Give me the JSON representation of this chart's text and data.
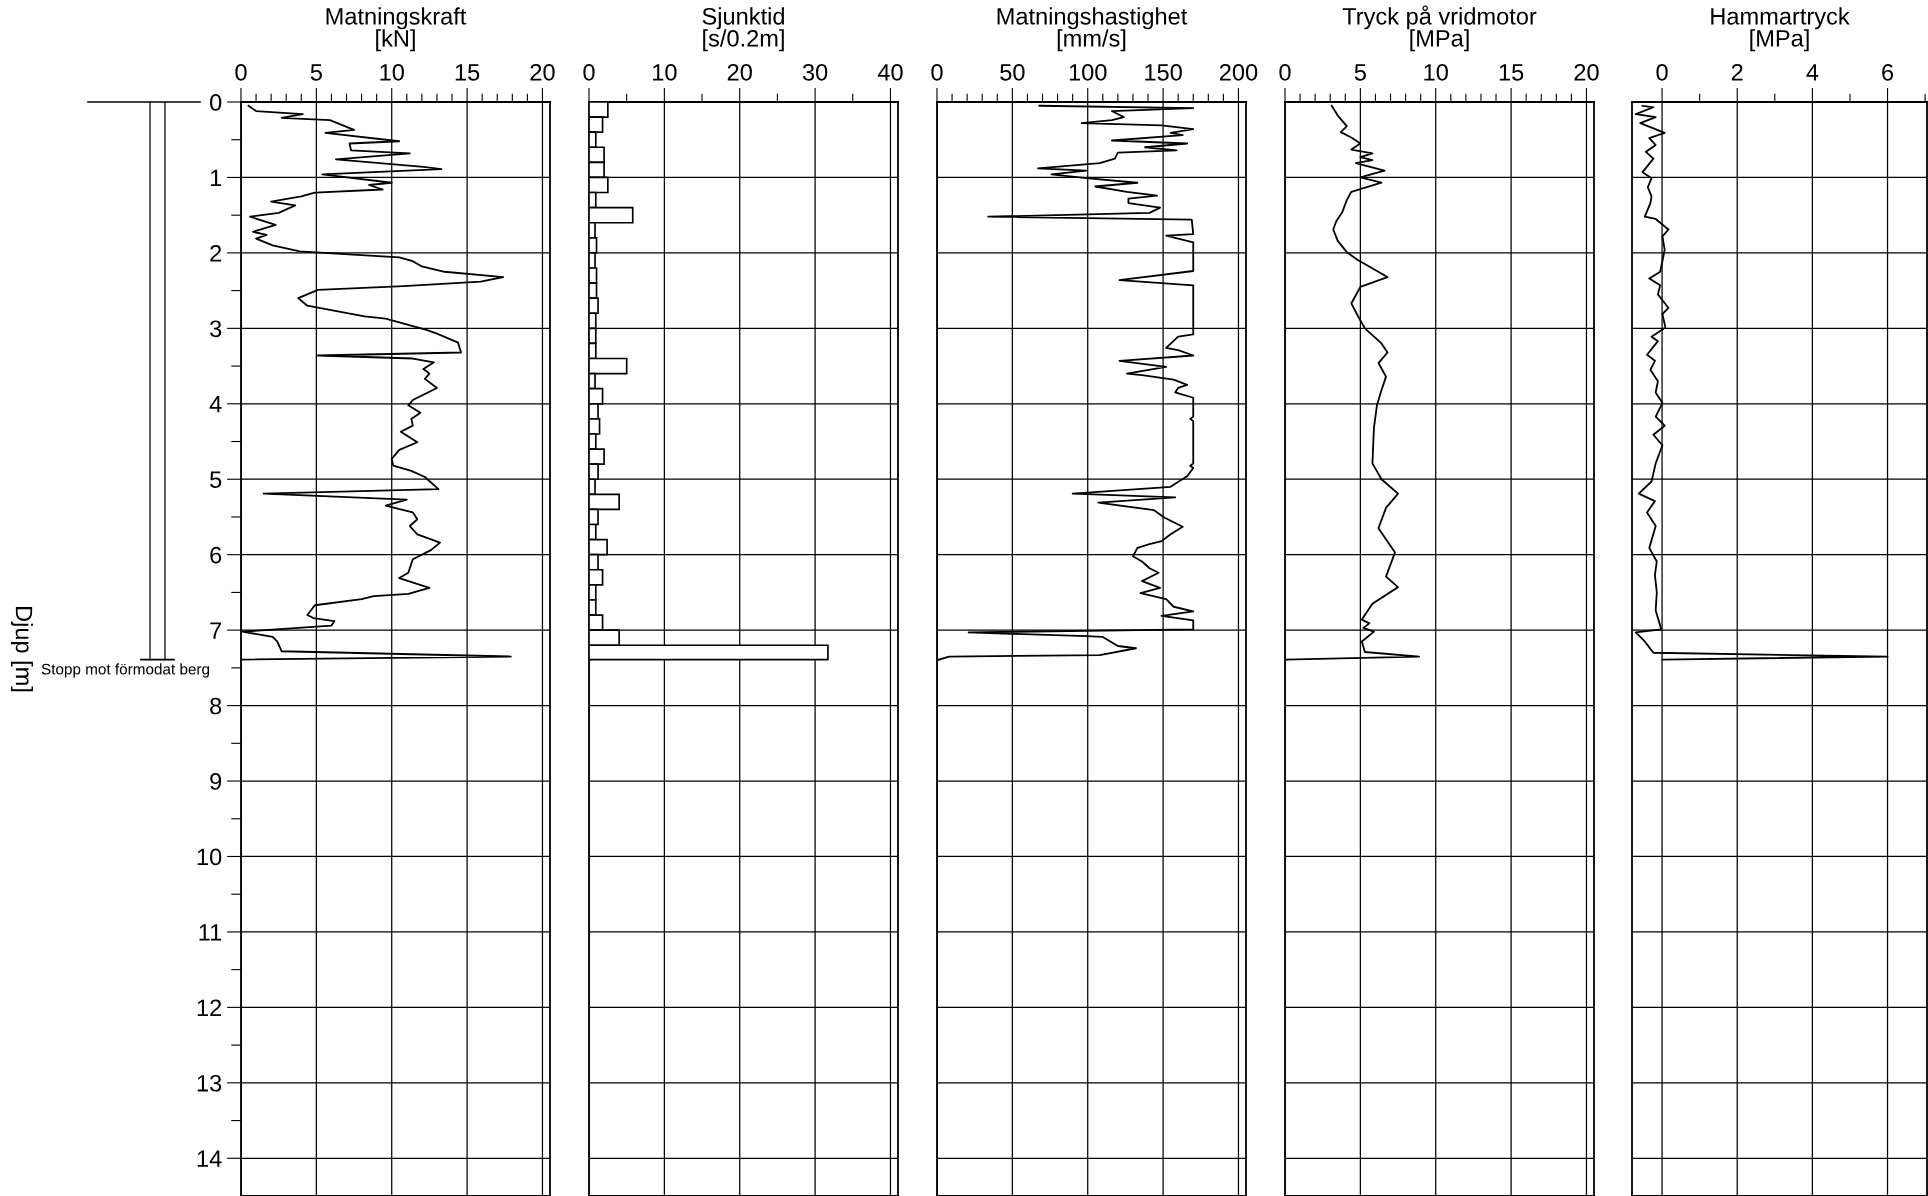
{
  "chart_data": [
    {
      "type": "line",
      "orientation": "horizontal",
      "title": "Matningskraft\n[kN]",
      "ylabel": "Djup [m]",
      "grid": true,
      "marker": "none",
      "line_style": "solid",
      "annotations": [
        "Stopp mot förmodat berg"
      ],
      "xlim": [
        0,
        20.5
      ],
      "xticks": [
        0,
        {
          "value": 1,
          "label": null
        },
        {
          "value": 2,
          "label": null
        },
        {
          "value": 3,
          "label": null
        },
        {
          "value": 4,
          "label": null
        },
        5,
        {
          "value": 6,
          "label": null
        },
        {
          "value": 7,
          "label": null
        },
        {
          "value": 8,
          "label": null
        },
        {
          "value": 9,
          "label": null
        },
        10,
        {
          "value": 11,
          "label": null
        },
        {
          "value": 12,
          "label": null
        },
        {
          "value": 13,
          "label": null
        },
        {
          "value": 14,
          "label": null
        },
        15,
        {
          "value": 16,
          "label": null
        },
        {
          "value": 17,
          "label": null
        },
        {
          "value": 18,
          "label": null
        },
        {
          "value": 19,
          "label": null
        },
        20
      ],
      "ylim": [
        14.5,
        0
      ],
      "yticks": [
        0,
        {
          "value": 0.5,
          "label": null
        },
        1,
        {
          "value": 1.5,
          "label": null
        },
        2,
        {
          "value": 2.5,
          "label": null
        },
        3,
        {
          "value": 3.5,
          "label": null
        },
        4,
        {
          "value": 4.5,
          "label": null
        },
        5,
        {
          "value": 5.5,
          "label": null
        },
        6,
        {
          "value": 6.5,
          "label": null
        },
        7,
        {
          "value": 7.5,
          "label": null
        },
        8,
        {
          "value": 8.5,
          "label": null
        },
        9,
        {
          "value": 9.5,
          "label": null
        },
        10,
        {
          "value": 10.5,
          "label": null
        },
        11,
        {
          "value": 11.5,
          "label": null
        },
        12,
        {
          "value": 12.5,
          "label": null
        },
        13,
        {
          "value": 13.5,
          "label": null
        },
        14
      ],
      "series": [
        {
          "color": "#000000",
          "x": [
            0.05,
            0.12,
            0.16,
            0.21,
            0.24,
            0.37,
            0.41,
            0.52,
            0.55,
            0.64,
            0.68,
            0.76,
            0.86,
            0.89,
            0.96,
            1.07,
            1.1,
            1.16,
            1.2,
            1.25,
            1.32,
            1.37,
            1.47,
            1.52,
            1.63,
            1.72,
            1.76,
            1.81,
            1.9,
            1.98,
            2.06,
            2.11,
            2.18,
            2.25,
            2.32,
            2.38,
            2.44,
            2.49,
            2.6,
            2.7,
            2.84,
            2.87,
            3.02,
            3.07,
            3.19,
            3.32,
            3.36,
            3.4,
            3.45,
            3.54,
            3.6,
            3.67,
            3.79,
            3.95,
            4.02,
            4.12,
            4.2,
            4.29,
            4.37,
            4.51,
            4.61,
            4.73,
            4.82,
            4.89,
            4.97,
            5.13,
            5.19,
            5.27,
            5.35,
            5.44,
            5.53,
            5.62,
            5.73,
            5.84,
            5.94,
            6.06,
            6.24,
            6.31,
            6.44,
            6.52,
            6.55,
            6.59,
            6.67,
            6.8,
            6.84,
            6.88,
            6.94,
            7.02,
            7.09,
            7.15,
            7.28,
            7.35,
            7.39
          ],
          "values": [
            0.5,
            1.0,
            4.1,
            2.7,
            5.9,
            7.5,
            5.6,
            10.5,
            7.2,
            7.3,
            11.2,
            6.3,
            12.1,
            13.3,
            5.4,
            10.0,
            8.5,
            9.4,
            4.9,
            4.0,
            2.0,
            3.6,
            2.5,
            0.6,
            2.3,
            0.8,
            1.7,
            1.0,
            2.1,
            3.9,
            10.5,
            11.4,
            12.0,
            13.5,
            17.4,
            15.9,
            10.8,
            5.1,
            3.8,
            4.4,
            8.2,
            9.6,
            12.3,
            13.0,
            14.4,
            14.6,
            5.1,
            11.4,
            12.8,
            12.1,
            12.5,
            12.2,
            13.0,
            11.4,
            11.1,
            11.9,
            11.3,
            11.4,
            10.6,
            11.7,
            10.5,
            10.0,
            10.1,
            11.3,
            12.2,
            13.1,
            1.5,
            11.0,
            9.6,
            11.4,
            11.7,
            11.2,
            11.7,
            13.2,
            12.6,
            11.4,
            11.1,
            10.5,
            12.5,
            11.1,
            8.8,
            8.0,
            4.9,
            4.4,
            4.8,
            6.2,
            6.0,
            0.1,
            2.1,
            2.4,
            2.7,
            17.9,
            0.1
          ]
        }
      ]
    },
    {
      "type": "histogram",
      "orientation": "horizontal",
      "title": "Sjunktid\n[s/0.2m]",
      "tick_labels": "x",
      "grid": true,
      "xlim": [
        0,
        41
      ],
      "xticks": [
        0,
        {
          "value": 5,
          "label": null
        },
        10,
        {
          "value": 15,
          "label": null
        },
        20,
        {
          "value": 25,
          "label": null
        },
        30,
        {
          "value": 35,
          "label": null
        },
        40
      ],
      "ylim": [
        14.5,
        0
      ],
      "yticks": [
        0,
        1,
        2,
        3,
        4,
        5,
        6,
        7,
        8,
        9,
        10,
        11,
        12,
        13,
        14
      ],
      "bins": [
        0,
        0.2,
        0.4,
        0.6,
        0.8,
        1.0,
        1.2,
        1.4,
        1.6,
        1.8,
        2.0,
        2.2,
        2.4,
        2.6,
        2.8,
        3.0,
        3.2,
        3.4,
        3.6,
        3.8,
        4.0,
        4.2,
        4.4,
        4.6,
        4.8,
        5.0,
        5.2,
        5.4,
        5.6,
        5.8,
        6.0,
        6.2,
        6.4,
        6.6,
        6.8,
        7.0,
        7.2,
        7.39
      ],
      "series": [
        {
          "color": "#ffffff",
          "values": [
            2.5,
            1.8,
            0.9,
            2.0,
            2.0,
            2.5,
            0.9,
            5.8,
            0.8,
            1.0,
            0.8,
            1.0,
            1.0,
            1.2,
            0.9,
            0.9,
            0.9,
            5.0,
            0.8,
            1.8,
            1.2,
            1.4,
            0.9,
            2.0,
            1.2,
            0.8,
            4.0,
            1.2,
            0.9,
            2.4,
            1.2,
            1.8,
            0.9,
            0.9,
            1.8,
            4.0,
            31.7
          ]
        }
      ]
    },
    {
      "type": "line",
      "orientation": "horizontal",
      "title": "Matningshastighet\n[mm/s]",
      "tick_labels": "x",
      "grid": true,
      "marker": "none",
      "line_style": "solid",
      "xlim": [
        0,
        205
      ],
      "xticks": [
        0,
        {
          "value": 10,
          "label": null
        },
        {
          "value": 20,
          "label": null
        },
        {
          "value": 30,
          "label": null
        },
        {
          "value": 40,
          "label": null
        },
        50,
        {
          "value": 60,
          "label": null
        },
        {
          "value": 70,
          "label": null
        },
        {
          "value": 80,
          "label": null
        },
        {
          "value": 90,
          "label": null
        },
        100,
        {
          "value": 110,
          "label": null
        },
        {
          "value": 120,
          "label": null
        },
        {
          "value": 130,
          "label": null
        },
        {
          "value": 140,
          "label": null
        },
        150,
        {
          "value": 160,
          "label": null
        },
        {
          "value": 170,
          "label": null
        },
        {
          "value": 180,
          "label": null
        },
        {
          "value": 190,
          "label": null
        },
        200
      ],
      "ylim": [
        14.5,
        0
      ],
      "yticks": [
        0,
        1,
        2,
        3,
        4,
        5,
        6,
        7,
        8,
        9,
        10,
        11,
        12,
        13,
        14
      ],
      "series": [
        {
          "color": "#000000",
          "x": [
            0.05,
            0.08,
            0.12,
            0.2,
            0.24,
            0.28,
            0.31,
            0.36,
            0.41,
            0.44,
            0.51,
            0.55,
            0.6,
            0.64,
            0.67,
            0.75,
            0.81,
            0.88,
            0.91,
            0.96,
            1.01,
            1.07,
            1.12,
            1.19,
            1.24,
            1.28,
            1.34,
            1.4,
            1.47,
            1.52,
            1.56,
            1.75,
            1.77,
            1.86,
            2.24,
            2.36,
            2.43,
            3.08,
            3.11,
            3.26,
            3.29,
            3.36,
            3.43,
            3.51,
            3.6,
            3.62,
            3.68,
            3.75,
            3.79,
            3.85,
            3.92,
            4.17,
            4.2,
            4.23,
            4.79,
            4.82,
            4.85,
            4.96,
            5.06,
            5.1,
            5.19,
            5.24,
            5.31,
            5.41,
            5.51,
            5.63,
            5.73,
            5.82,
            5.86,
            5.91,
            6.02,
            6.09,
            6.18,
            6.24,
            6.35,
            6.44,
            6.51,
            6.59,
            6.69,
            6.75,
            6.81,
            6.87,
            6.99,
            7.03,
            7.08,
            7.09,
            7.21,
            7.24,
            7.33,
            7.35,
            7.4
          ],
          "values": [
            68,
            170,
            116,
            124,
            116,
            96,
            149,
            170,
            155,
            163,
            116,
            166,
            138,
            159,
            120,
            118,
            108,
            67,
            99,
            76,
            99,
            133,
            105,
            126,
            146,
            127,
            127,
            148,
            141,
            34,
            169,
            170,
            152,
            170,
            170,
            121,
            170,
            170,
            160,
            152,
            160,
            170,
            121,
            152,
            126,
            136,
            157,
            166,
            160,
            158,
            170,
            170,
            168,
            170,
            170,
            168,
            170,
            166,
            158,
            155,
            90,
            158,
            107,
            144,
            151,
            163,
            155,
            149,
            141,
            133,
            130,
            136,
            141,
            147,
            136,
            148,
            135,
            152,
            157,
            170,
            149,
            170,
            170,
            21,
            99,
            110,
            120,
            132,
            108,
            8,
            0
          ]
        }
      ]
    },
    {
      "type": "line",
      "orientation": "horizontal",
      "title": "Tryck på vridmotor\n[MPa]",
      "tick_labels": "x",
      "grid": true,
      "marker": "none",
      "line_style": "solid",
      "xlim": [
        0,
        20.5
      ],
      "xticks": [
        0,
        {
          "value": 1,
          "label": null
        },
        {
          "value": 2,
          "label": null
        },
        {
          "value": 3,
          "label": null
        },
        {
          "value": 4,
          "label": null
        },
        5,
        {
          "value": 6,
          "label": null
        },
        {
          "value": 7,
          "label": null
        },
        {
          "value": 8,
          "label": null
        },
        {
          "value": 9,
          "label": null
        },
        10,
        {
          "value": 11,
          "label": null
        },
        {
          "value": 12,
          "label": null
        },
        {
          "value": 13,
          "label": null
        },
        {
          "value": 14,
          "label": null
        },
        15,
        {
          "value": 16,
          "label": null
        },
        {
          "value": 17,
          "label": null
        },
        {
          "value": 18,
          "label": null
        },
        {
          "value": 19,
          "label": null
        },
        20
      ],
      "ylim": [
        14.5,
        0
      ],
      "yticks": [
        0,
        1,
        2,
        3,
        4,
        5,
        6,
        7,
        8,
        9,
        10,
        11,
        12,
        13,
        14
      ],
      "series": [
        {
          "color": "#000000",
          "x": [
            0.05,
            0.18,
            0.32,
            0.4,
            0.47,
            0.55,
            0.63,
            0.68,
            0.73,
            0.77,
            0.81,
            0.91,
            1.0,
            1.07,
            1.19,
            1.3,
            1.46,
            1.58,
            1.69,
            1.84,
            1.99,
            2.09,
            2.32,
            2.45,
            2.67,
            2.86,
            3.0,
            3.2,
            3.32,
            3.46,
            3.64,
            3.82,
            4.02,
            4.32,
            4.79,
            5.0,
            5.19,
            5.38,
            5.65,
            5.97,
            6.29,
            6.43,
            6.65,
            6.86,
            6.91,
            6.97,
            7.02,
            7.15,
            7.29,
            7.35,
            7.39
          ],
          "values": [
            3.1,
            3.5,
            4.1,
            3.7,
            4.4,
            5.0,
            4.4,
            5.8,
            5.0,
            5.8,
            4.7,
            6.6,
            5.0,
            6.4,
            4.4,
            4.1,
            3.8,
            3.4,
            3.2,
            3.5,
            4.1,
            4.8,
            6.8,
            5.0,
            4.4,
            4.9,
            5.3,
            6.4,
            6.8,
            6.2,
            6.7,
            6.4,
            6.1,
            5.9,
            5.8,
            6.4,
            7.5,
            6.7,
            6.2,
            7.3,
            6.7,
            7.5,
            5.8,
            5.1,
            5.6,
            5.2,
            5.9,
            5.1,
            5.3,
            8.9,
            0
          ]
        }
      ]
    },
    {
      "type": "line",
      "orientation": "horizontal",
      "title": "Hammartryck\n[MPa]",
      "tick_labels": "x",
      "grid": true,
      "marker": "none",
      "line_style": "solid",
      "xlim": [
        -0.8,
        7.05
      ],
      "xticks": [
        0,
        {
          "value": 1,
          "label": null
        },
        2,
        {
          "value": 3,
          "label": null
        },
        4,
        {
          "value": 5,
          "label": null
        },
        6,
        {
          "value": 7,
          "label": null
        }
      ],
      "ylim": [
        14.5,
        0
      ],
      "yticks": [
        0,
        1,
        2,
        3,
        4,
        5,
        6,
        7,
        8,
        9,
        10,
        11,
        12,
        13,
        14
      ],
      "series": [
        {
          "color": "#000000",
          "x": [
            0.05,
            0.07,
            0.16,
            0.2,
            0.28,
            0.41,
            0.48,
            0.57,
            0.66,
            0.75,
            0.93,
            1.01,
            1.13,
            1.25,
            1.34,
            1.52,
            1.55,
            1.69,
            1.78,
            1.96,
            2.25,
            2.34,
            2.43,
            2.55,
            2.73,
            2.81,
            2.99,
            3.11,
            3.17,
            3.35,
            3.43,
            3.55,
            3.7,
            3.85,
            3.99,
            4.17,
            4.29,
            4.41,
            4.55,
            4.79,
            5.03,
            5.19,
            5.29,
            5.44,
            5.62,
            5.91,
            6.09,
            6.27,
            6.5,
            6.74,
            6.99,
            7.03,
            7.15,
            7.3,
            7.35,
            7.39
          ],
          "values": [
            -0.52,
            -0.23,
            -0.7,
            -0.17,
            -0.58,
            0.07,
            -0.34,
            -0.17,
            -0.43,
            -0.23,
            -0.52,
            -0.28,
            -0.38,
            -0.28,
            -0.31,
            -0.46,
            -0.17,
            0.17,
            0.01,
            0.07,
            -0.05,
            -0.34,
            -0.05,
            -0.11,
            0.17,
            0.01,
            0.09,
            -0.28,
            -0.11,
            -0.4,
            -0.19,
            -0.31,
            -0.11,
            -0.17,
            0.01,
            -0.17,
            0.07,
            -0.23,
            0.01,
            -0.17,
            -0.28,
            -0.62,
            -0.19,
            -0.4,
            -0.17,
            -0.34,
            -0.14,
            -0.19,
            -0.14,
            -0.17,
            -0.02,
            -0.7,
            -0.46,
            -0.23,
            6.0,
            0.01
          ]
        }
      ]
    }
  ]
}
